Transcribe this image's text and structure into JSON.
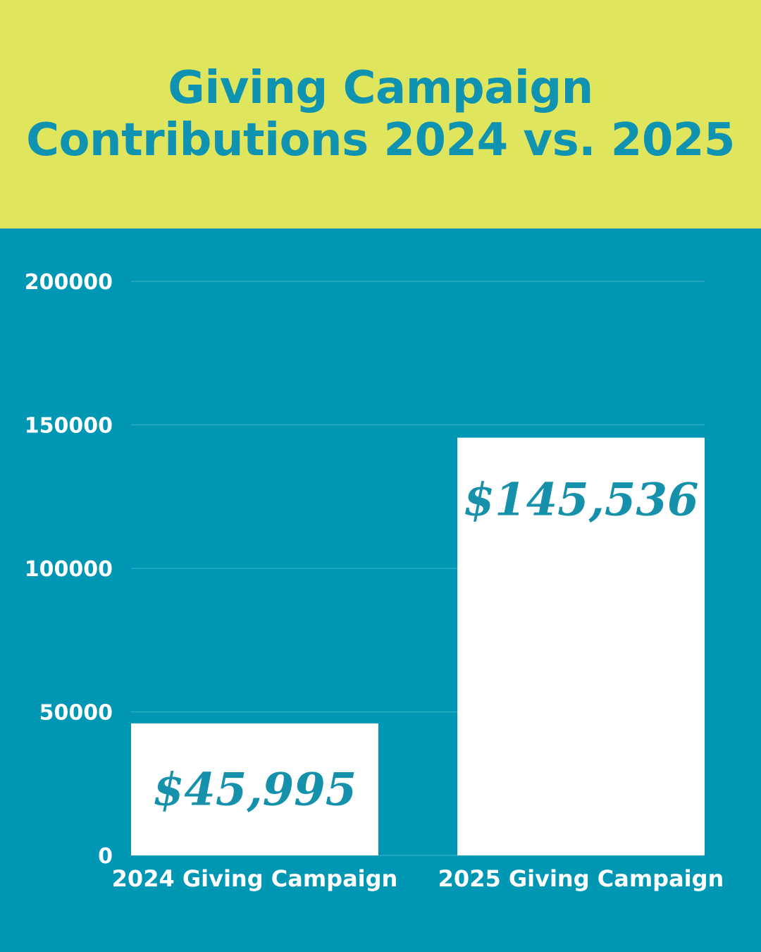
{
  "colors": {
    "header_bg": "#e0e55e",
    "chart_bg": "#0097b5",
    "title_text": "#0f93b0",
    "bar_fill": "#ffffff",
    "bar_label": "#1591ab",
    "gridline": "#35adc6",
    "axis_text": "#ffffff"
  },
  "header": {
    "title_line1": "Giving Campaign",
    "title_line2": "Contributions 2024 vs. 2025"
  },
  "chart_data": {
    "type": "bar",
    "title": "Giving Campaign Contributions 2024 vs. 2025",
    "categories": [
      "2024 Giving Campaign",
      "2025 Giving Campaign"
    ],
    "values": [
      45995,
      145536
    ],
    "data_labels": [
      "$45,995",
      "$145,536"
    ],
    "ylim": [
      0,
      200000
    ],
    "yticks": [
      0,
      50000,
      100000,
      150000,
      200000
    ],
    "ytick_labels": [
      "0",
      "50000",
      "100000",
      "150000",
      "200000"
    ],
    "xlabel": "",
    "ylabel": "",
    "grid": true,
    "legend": "none"
  }
}
